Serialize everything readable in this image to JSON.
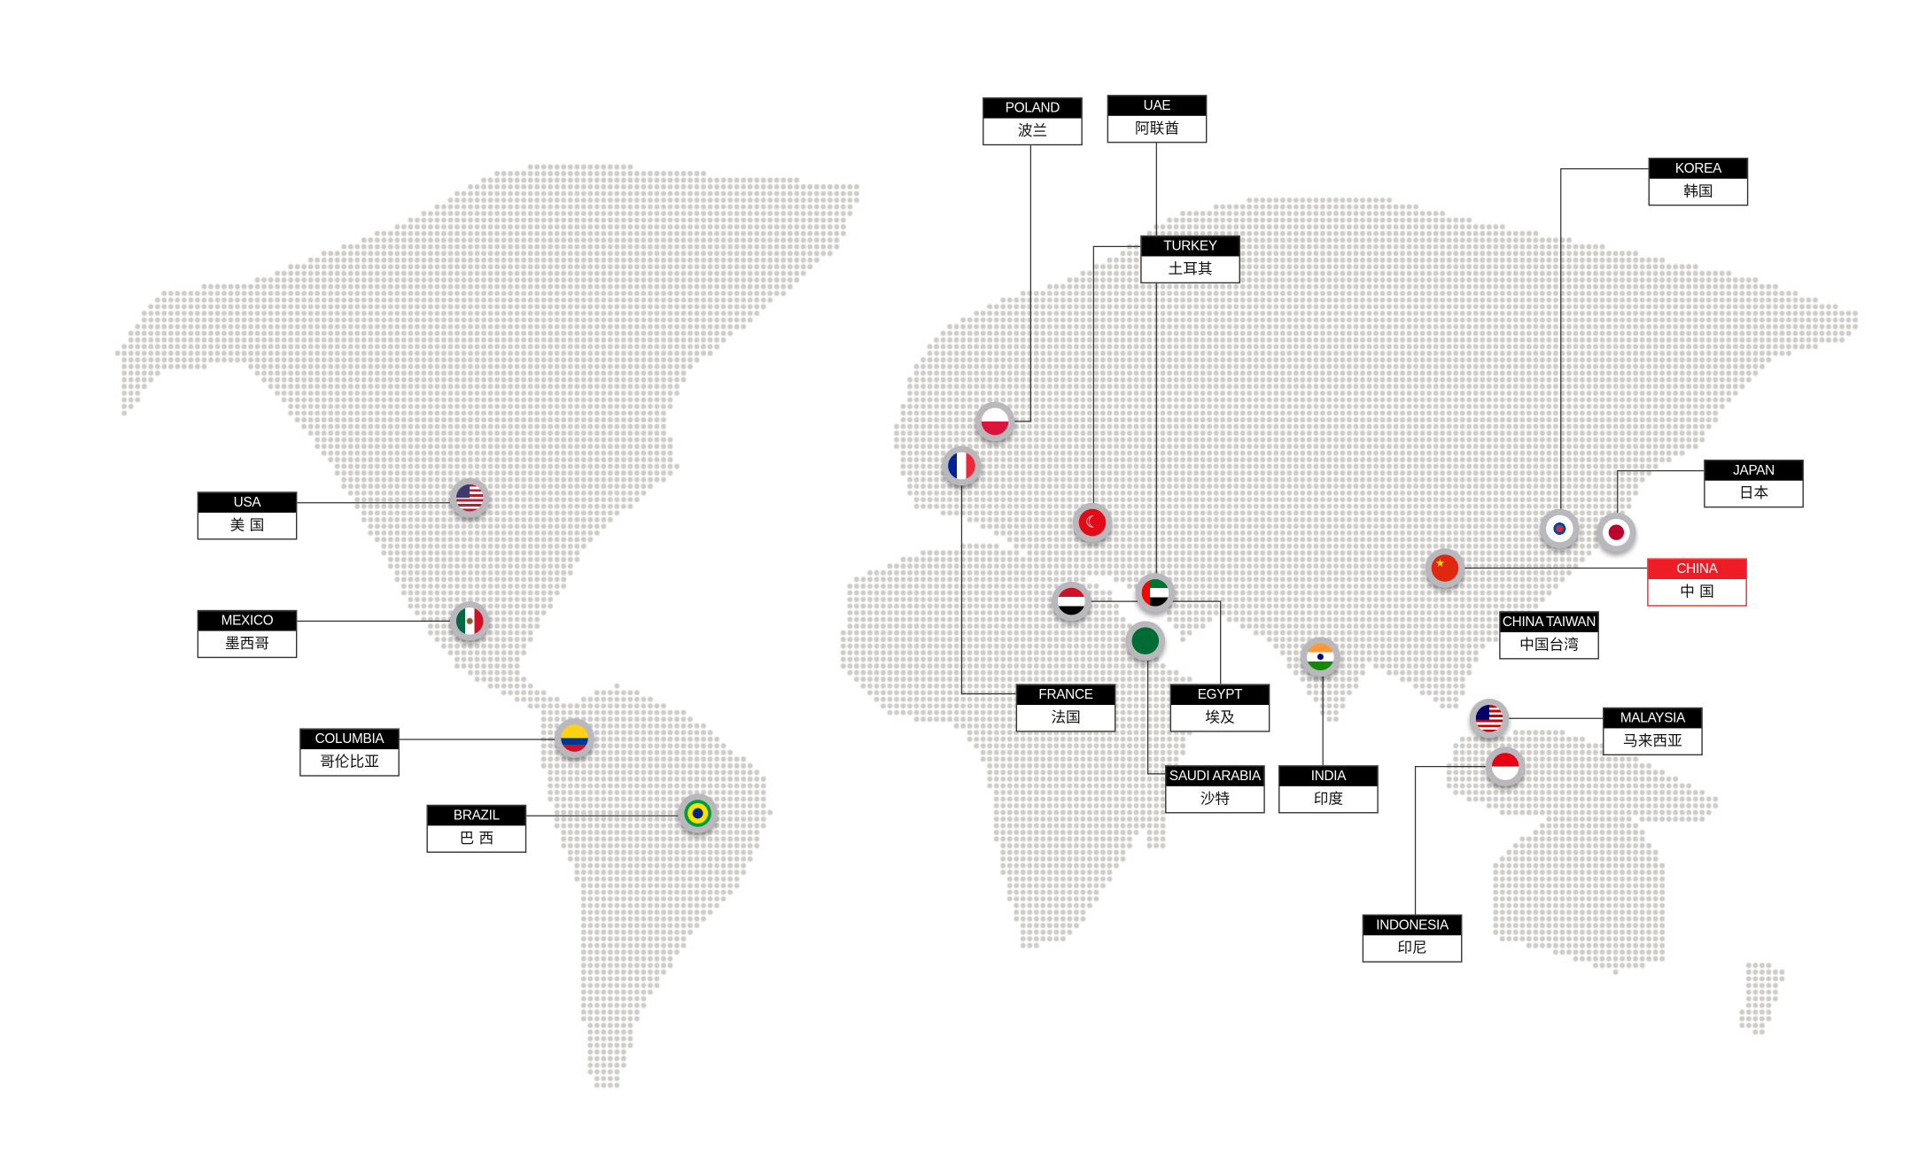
{
  "colors": {
    "dot": "#cfccc8",
    "line": "#333333",
    "label_header": "#000000",
    "highlight": "#ee1c25"
  },
  "countries": [
    {
      "id": "poland",
      "en": "POLAND",
      "zh": "波兰",
      "flag": "poland-flag-icon"
    },
    {
      "id": "uae",
      "en": "UAE",
      "zh": "阿联酋",
      "flag": "uae-flag-icon"
    },
    {
      "id": "turkey",
      "en": "TURKEY",
      "zh": "土耳其",
      "flag": "turkey-flag-icon"
    },
    {
      "id": "korea",
      "en": "KOREA",
      "zh": "韩国",
      "flag": "korea-flag-icon"
    },
    {
      "id": "japan",
      "en": "JAPAN",
      "zh": "日本",
      "flag": "japan-flag-icon"
    },
    {
      "id": "china",
      "en": "CHINA",
      "zh": "中 国",
      "flag": "china-flag-icon",
      "highlighted": true
    },
    {
      "id": "china-taiwan",
      "en": "CHINA TAIWAN",
      "zh": "中国台湾"
    },
    {
      "id": "malaysia",
      "en": "MALAYSIA",
      "zh": "马来西亚",
      "flag": "malaysia-flag-icon"
    },
    {
      "id": "indonesia",
      "en": "INDONESIA",
      "zh": "印尼",
      "flag": "indonesia-flag-icon"
    },
    {
      "id": "india",
      "en": "INDIA",
      "zh": "印度",
      "flag": "india-flag-icon"
    },
    {
      "id": "saudi-arabia",
      "en": "SAUDI ARABIA",
      "zh": "沙特",
      "flag": "saudi-flag-icon"
    },
    {
      "id": "egypt",
      "en": "EGYPT",
      "zh": "埃及",
      "flag": "egypt-flag-icon"
    },
    {
      "id": "france",
      "en": "FRANCE",
      "zh": "法国",
      "flag": "france-flag-icon"
    },
    {
      "id": "usa",
      "en": "USA",
      "zh": "美 国",
      "flag": "usa-flag-icon"
    },
    {
      "id": "mexico",
      "en": "MEXICO",
      "zh": "墨西哥",
      "flag": "mexico-flag-icon"
    },
    {
      "id": "columbia",
      "en": "COLUMBIA",
      "zh": "哥伦比亚",
      "flag": "colombia-flag-icon"
    },
    {
      "id": "brazil",
      "en": "BRAZIL",
      "zh": "巴 西",
      "flag": "brazil-flag-icon"
    }
  ]
}
